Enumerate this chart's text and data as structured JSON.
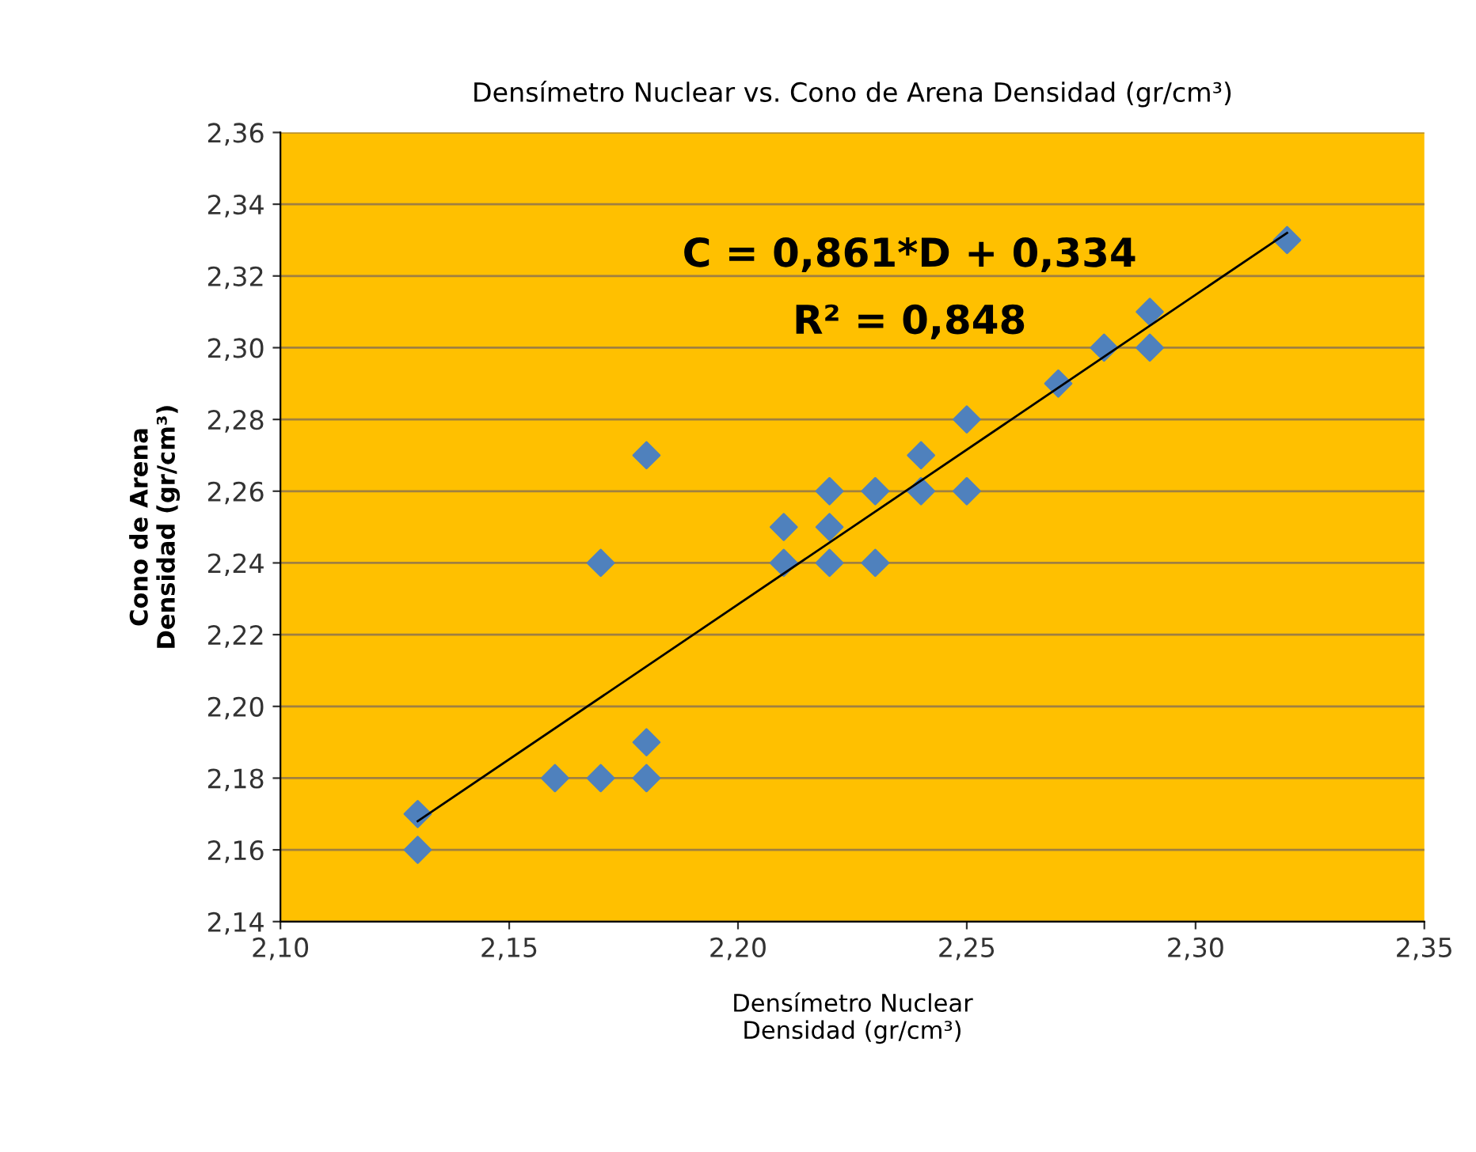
{
  "chart_data": {
    "type": "scatter",
    "title": "Densímetro Nuclear vs. Cono de Arena Densidad (gr/cm³)",
    "xlabel": "Densímetro Nuclear\nDensidad (gr/cm³)",
    "ylabel": "Cono de Arena\nDensidad (gr/cm³)",
    "annotations": [
      "C = 0,861*D + 0,334",
      "R² = 0,848"
    ],
    "series": [
      {
        "color": "#4f81bd",
        "marker": "diamond",
        "x": [
          2.13,
          2.13,
          2.16,
          2.17,
          2.17,
          2.18,
          2.18,
          2.18,
          2.21,
          2.21,
          2.22,
          2.22,
          2.22,
          2.23,
          2.23,
          2.24,
          2.24,
          2.25,
          2.25,
          2.27,
          2.28,
          2.29,
          2.29,
          2.32
        ],
        "values": [
          2.17,
          2.16,
          2.18,
          2.18,
          2.24,
          2.18,
          2.19,
          2.27,
          2.25,
          2.24,
          2.26,
          2.25,
          2.24,
          2.26,
          2.24,
          2.27,
          2.26,
          2.28,
          2.26,
          2.29,
          2.3,
          2.31,
          2.3,
          2.33
        ]
      },
      {
        "type": "line",
        "color": "#000000",
        "x": [
          2.13,
          2.32
        ],
        "values": [
          2.168,
          2.332
        ]
      }
    ],
    "xlim": [
      2.1,
      2.35
    ],
    "ylim": [
      2.14,
      2.36
    ],
    "xticks": [
      {
        "value": 2.1,
        "label": "2,10"
      },
      {
        "value": 2.15,
        "label": "2,15"
      },
      {
        "value": 2.2,
        "label": "2,20"
      },
      {
        "value": 2.25,
        "label": "2,25"
      },
      {
        "value": 2.3,
        "label": "2,30"
      },
      {
        "value": 2.35,
        "label": "2,35"
      }
    ],
    "yticks": [
      {
        "value": 2.14,
        "label": "2,14"
      },
      {
        "value": 2.16,
        "label": "2,16"
      },
      {
        "value": 2.18,
        "label": "2,18"
      },
      {
        "value": 2.2,
        "label": "2,20"
      },
      {
        "value": 2.22,
        "label": "2,22"
      },
      {
        "value": 2.24,
        "label": "2,24"
      },
      {
        "value": 2.26,
        "label": "2,26"
      },
      {
        "value": 2.28,
        "label": "2,28"
      },
      {
        "value": 2.3,
        "label": "2,30"
      },
      {
        "value": 2.32,
        "label": "2,32"
      },
      {
        "value": 2.34,
        "label": "2,34"
      },
      {
        "value": 2.36,
        "label": "2,36"
      }
    ],
    "grid": "y"
  }
}
